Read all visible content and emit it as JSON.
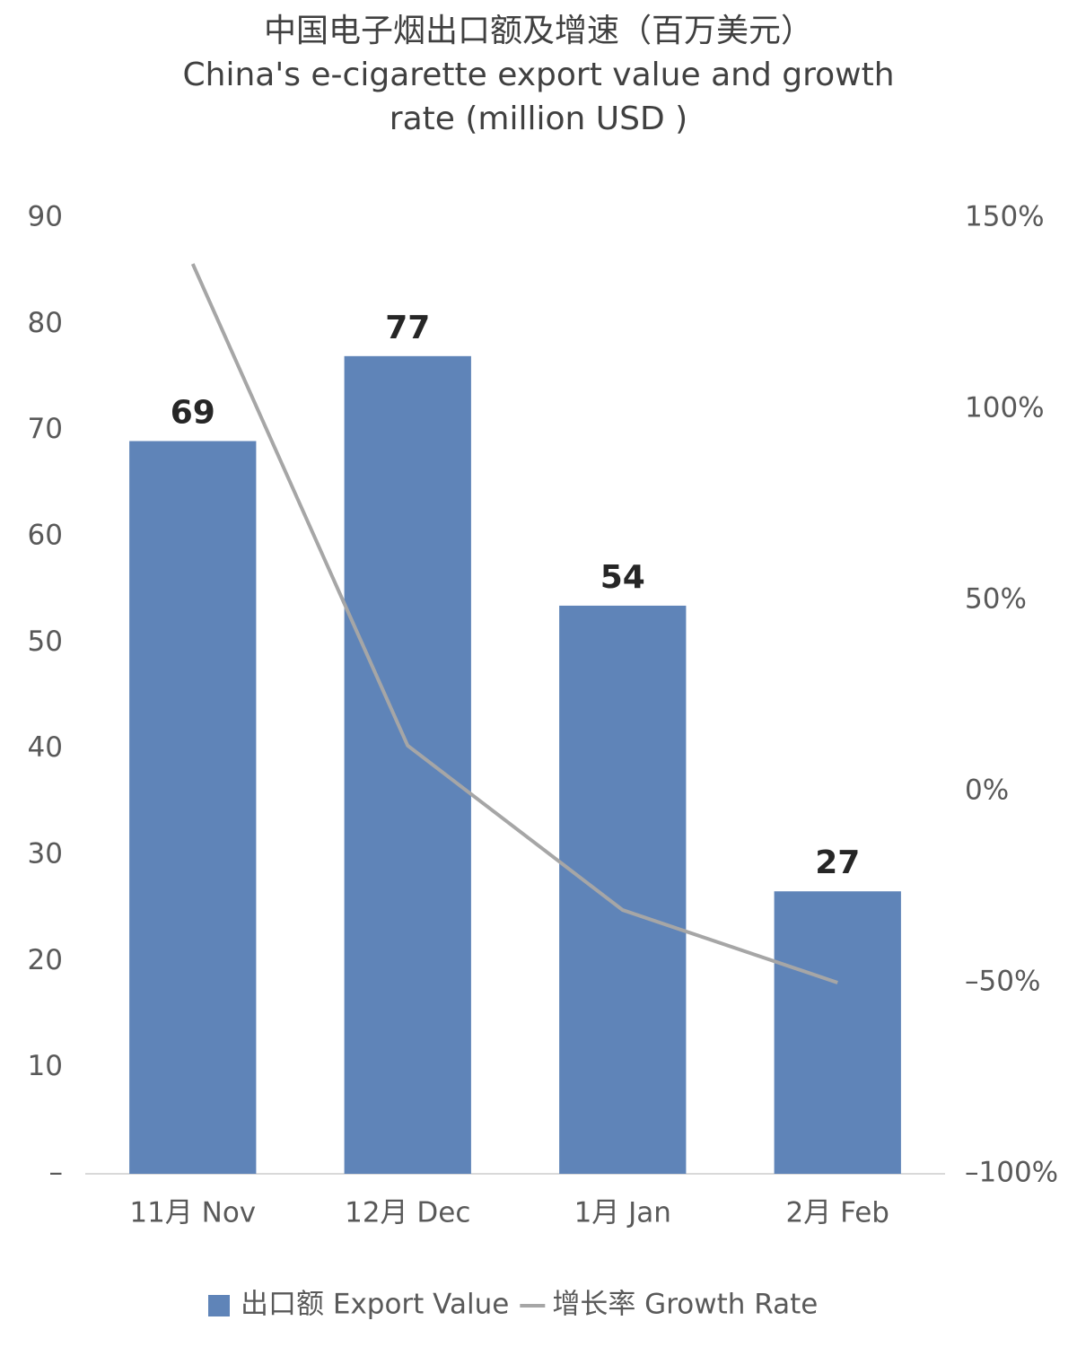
{
  "chart_data": {
    "type": "bar_line",
    "title": "中国电子烟出口额及增速（百万美元）",
    "subtitle": [
      "China's e-cigarette export value and growth",
      "rate (million USD )"
    ],
    "categories": [
      "11月 Nov",
      "12月 Dec",
      "1月 Jan",
      "2月 Feb"
    ],
    "series": [
      {
        "name": "出口额 Export Value",
        "type": "bar",
        "color": "#5f84b8",
        "values": [
          69,
          77,
          53.5,
          26.6
        ],
        "value_labels": [
          "69",
          "77",
          "54",
          "27"
        ]
      },
      {
        "name": "增长率 Growth Rate",
        "type": "line",
        "axis": "y2",
        "color": "#a6a6a6",
        "values": [
          138,
          12,
          -31,
          -50
        ]
      }
    ],
    "ylim": [
      0,
      90
    ],
    "yticks": [
      {
        "value": 0,
        "label": "–"
      },
      10,
      20,
      30,
      40,
      50,
      60,
      70,
      80,
      90
    ],
    "y2lim": [
      -100,
      150
    ],
    "y2ticks": [
      {
        "value": -100,
        "label": "–100%"
      },
      {
        "value": -50,
        "label": "–50%"
      },
      {
        "value": 0,
        "label": "0%"
      },
      {
        "value": 50,
        "label": "50%"
      },
      {
        "value": 100,
        "label": "100%"
      },
      {
        "value": 150,
        "label": "150%"
      }
    ],
    "grid": false,
    "legend": "bottom"
  }
}
